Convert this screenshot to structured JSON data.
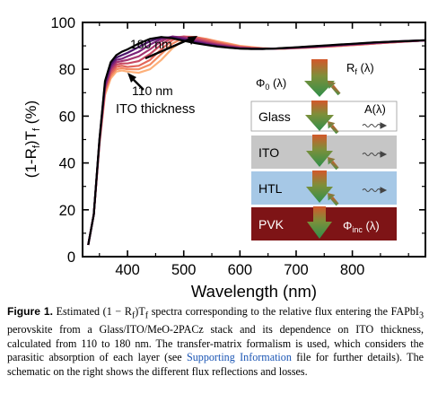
{
  "chart_data": {
    "type": "line",
    "xlabel": "Wavelength (nm)",
    "ylabel": "(1-R_f)T_f (%)",
    "xlim": [
      320,
      930
    ],
    "ylim": [
      0,
      100
    ],
    "x_ticks": [
      400,
      500,
      600,
      700,
      800
    ],
    "y_ticks": [
      0,
      20,
      40,
      60,
      80,
      100
    ],
    "grid": false,
    "legend": "none",
    "thickness_range_nm": [
      110,
      180
    ],
    "series_colors": [
      "#fdb07a",
      "#f38b63",
      "#e2665a",
      "#c94a63",
      "#a53570",
      "#7c2379",
      "#4c146b",
      "#000000"
    ],
    "annotations": {
      "top": "180 nm",
      "bottom": "110 nm",
      "label": "ITO thickness"
    },
    "series": [
      {
        "x": [
          330,
          340,
          350,
          360,
          370,
          380,
          390,
          400,
          420,
          440,
          460,
          480,
          500,
          520,
          540,
          560,
          580,
          600,
          620,
          640,
          660,
          680,
          700,
          720,
          740,
          760,
          780,
          800,
          820,
          840,
          860,
          880,
          900,
          920,
          930
        ],
        "y": [
          5,
          18,
          48,
          69,
          76,
          79,
          79.5,
          79,
          78.5,
          80,
          84,
          89,
          92.5,
          93.5,
          93,
          92,
          91,
          90,
          89.5,
          89,
          88.8,
          88.8,
          89,
          89.2,
          89.5,
          89.7,
          90,
          90.3,
          90.6,
          91,
          91.3,
          91.6,
          91.9,
          92.2,
          92.3
        ]
      },
      {
        "x": [
          330,
          340,
          350,
          360,
          370,
          380,
          390,
          400,
          420,
          440,
          460,
          480,
          500,
          520,
          540,
          560,
          580,
          600,
          620,
          640,
          660,
          680,
          700,
          720,
          740,
          760,
          780,
          800,
          820,
          840,
          860,
          880,
          900,
          920,
          930
        ],
        "y": [
          5,
          18,
          48,
          70,
          77,
          80,
          80.5,
          80,
          80,
          82,
          86.5,
          91,
          93.5,
          93.8,
          93,
          91.8,
          90.8,
          89.8,
          89.3,
          89,
          88.8,
          88.8,
          89,
          89.2,
          89.5,
          89.7,
          90,
          90.3,
          90.6,
          91,
          91.3,
          91.6,
          91.9,
          92.2,
          92.3
        ]
      },
      {
        "x": [
          330,
          340,
          350,
          360,
          370,
          380,
          390,
          400,
          420,
          440,
          460,
          480,
          500,
          520,
          540,
          560,
          580,
          600,
          620,
          640,
          660,
          680,
          700,
          720,
          740,
          760,
          780,
          800,
          820,
          840,
          860,
          880,
          900,
          920,
          930
        ],
        "y": [
          5,
          18,
          49,
          71,
          78,
          81,
          81.5,
          81,
          81.5,
          84,
          88.5,
          92.5,
          94,
          93.8,
          92.6,
          91.4,
          90.4,
          89.6,
          89.2,
          88.9,
          88.8,
          88.9,
          89.1,
          89.3,
          89.5,
          89.8,
          90.1,
          90.4,
          90.7,
          91,
          91.3,
          91.6,
          91.9,
          92.2,
          92.3
        ]
      },
      {
        "x": [
          330,
          340,
          350,
          360,
          370,
          380,
          390,
          400,
          420,
          440,
          460,
          480,
          500,
          520,
          540,
          560,
          580,
          600,
          620,
          640,
          660,
          680,
          700,
          720,
          740,
          760,
          780,
          800,
          820,
          840,
          860,
          880,
          900,
          920,
          930
        ],
        "y": [
          5,
          18,
          49,
          72,
          79,
          82,
          82.5,
          82.5,
          83.5,
          86.5,
          90.5,
          93.5,
          94,
          93.3,
          92,
          90.9,
          90.1,
          89.4,
          89,
          88.8,
          88.8,
          88.9,
          89.1,
          89.3,
          89.6,
          89.9,
          90.2,
          90.5,
          90.8,
          91.1,
          91.4,
          91.7,
          92,
          92.2,
          92.3
        ]
      },
      {
        "x": [
          330,
          340,
          350,
          360,
          370,
          380,
          390,
          400,
          420,
          440,
          460,
          480,
          500,
          520,
          540,
          560,
          580,
          600,
          620,
          640,
          660,
          680,
          700,
          720,
          740,
          760,
          780,
          800,
          820,
          840,
          860,
          880,
          900,
          920,
          930
        ],
        "y": [
          5,
          18,
          49,
          72,
          80,
          83,
          83.5,
          84,
          85.5,
          88.5,
          92,
          94,
          93.6,
          92.6,
          91.4,
          90.5,
          89.8,
          89.2,
          88.9,
          88.8,
          88.8,
          89,
          89.2,
          89.4,
          89.7,
          90,
          90.3,
          90.6,
          90.9,
          91.2,
          91.5,
          91.8,
          92,
          92.2,
          92.3
        ]
      },
      {
        "x": [
          330,
          340,
          350,
          360,
          370,
          380,
          390,
          400,
          420,
          440,
          460,
          480,
          500,
          520,
          540,
          560,
          580,
          600,
          620,
          640,
          660,
          680,
          700,
          720,
          740,
          760,
          780,
          800,
          820,
          840,
          860,
          880,
          900,
          920,
          930
        ],
        "y": [
          5,
          18,
          49,
          73,
          81,
          84,
          84.5,
          85.5,
          87.5,
          90.5,
          93,
          94,
          93.2,
          92,
          91,
          90.2,
          89.5,
          89,
          88.8,
          88.7,
          88.8,
          89,
          89.2,
          89.5,
          89.8,
          90.1,
          90.4,
          90.7,
          91,
          91.3,
          91.6,
          91.8,
          92,
          92.2,
          92.3
        ]
      },
      {
        "x": [
          330,
          340,
          350,
          360,
          370,
          380,
          390,
          400,
          420,
          440,
          460,
          480,
          500,
          520,
          540,
          560,
          580,
          600,
          620,
          640,
          660,
          680,
          700,
          720,
          740,
          760,
          780,
          800,
          820,
          840,
          860,
          880,
          900,
          920,
          930
        ],
        "y": [
          5,
          18,
          50,
          74,
          82,
          85,
          86,
          87,
          89.5,
          92,
          93.6,
          93.6,
          92.7,
          91.6,
          90.7,
          89.9,
          89.3,
          88.9,
          88.7,
          88.7,
          88.8,
          89,
          89.3,
          89.6,
          89.9,
          90.2,
          90.5,
          90.8,
          91.1,
          91.4,
          91.7,
          91.9,
          92.1,
          92.3,
          92.4
        ]
      },
      {
        "x": [
          330,
          340,
          350,
          360,
          370,
          380,
          390,
          400,
          420,
          440,
          460,
          480,
          500,
          520,
          540,
          560,
          580,
          600,
          620,
          640,
          660,
          680,
          700,
          720,
          740,
          760,
          780,
          800,
          820,
          840,
          860,
          880,
          900,
          920,
          930
        ],
        "y": [
          5,
          18,
          50,
          75,
          83,
          86,
          87.5,
          88.5,
          91,
          93,
          93.8,
          93.2,
          92.2,
          91.2,
          90.4,
          89.7,
          89.2,
          88.8,
          88.7,
          88.7,
          88.8,
          89.1,
          89.4,
          89.7,
          90,
          90.3,
          90.6,
          90.9,
          91.2,
          91.5,
          91.7,
          91.9,
          92.1,
          92.3,
          92.4
        ]
      }
    ]
  },
  "schematic": {
    "phi0": "Φ₀ (λ)",
    "rf": "R_f (λ)",
    "absorption": "A(λ)",
    "phi_inc": "Φ_inc (λ)",
    "layers": [
      {
        "name": "Glass",
        "color": "#ffffff"
      },
      {
        "name": "ITO",
        "color": "#c6c6c6"
      },
      {
        "name": "HTL",
        "color": "#a6c8e6"
      },
      {
        "name": "PVK",
        "color": "#7e1416"
      }
    ]
  },
  "caption": {
    "label": "Figure 1.",
    "part1": " Estimated (1 − R",
    "sub_f1": "f",
    "part2": ")T",
    "sub_f2": "f",
    "part3": " spectra corresponding to the relative flux entering the FAPbI",
    "sub_3": "3",
    "part4": " perovskite from a Glass/ITO/MeO-2PACz stack and its dependence on ITO thickness, calculated from 110 to 180 nm. The transfer-matrix formalism is used, which considers the parasitic absorption of each layer (see ",
    "link": "Supporting Information",
    "part5": " file for further details). The schematic on the right shows the different flux reflections and losses."
  }
}
